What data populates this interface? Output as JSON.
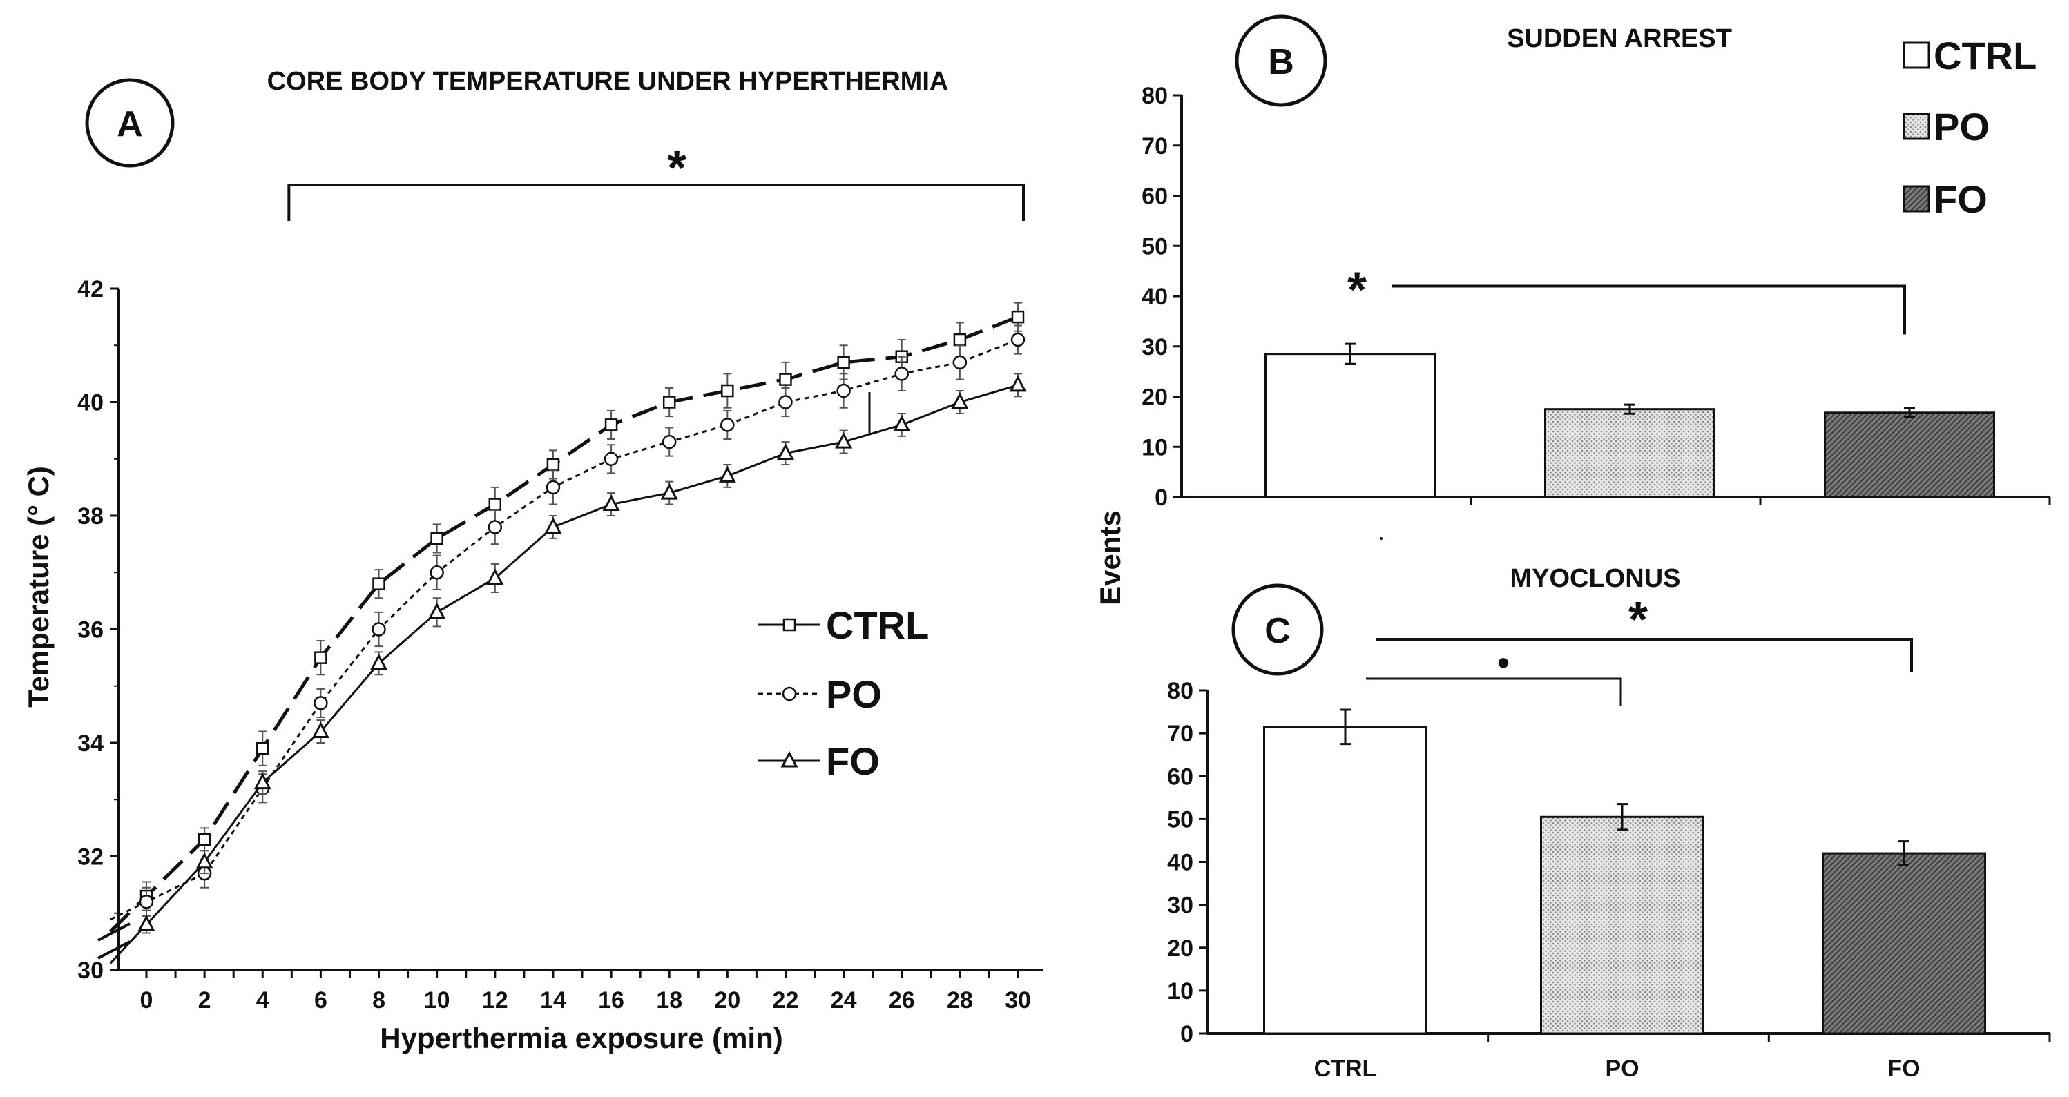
{
  "chart_data": [
    {
      "panel": "A",
      "type": "line",
      "title": "CORE BODY TEMPERATURE UNDER HYPERTHERMIA",
      "xlabel": "Hyperthermia exposure  (min)",
      "ylabel": "Temperature (° C)",
      "x": [
        0,
        2,
        4,
        6,
        8,
        10,
        12,
        14,
        16,
        18,
        20,
        22,
        24,
        26,
        28,
        30
      ],
      "x_tick_labels": [
        "0",
        "2",
        "4",
        "6",
        "8",
        "10",
        "12",
        "14",
        "16",
        "18",
        "20",
        "22",
        "24",
        "26",
        "28",
        "30"
      ],
      "ylim": [
        30,
        42
      ],
      "y_tick_labels": [
        "30",
        "32",
        "34",
        "36",
        "38",
        "40",
        "42"
      ],
      "series": [
        {
          "name": "CTRL",
          "marker": "square",
          "line": "long-dash",
          "values": [
            31.3,
            32.3,
            33.9,
            35.5,
            36.8,
            37.6,
            38.2,
            38.9,
            39.6,
            40.0,
            40.2,
            40.4,
            40.7,
            40.8,
            41.1,
            41.5
          ],
          "errors": [
            0.25,
            0.2,
            0.3,
            0.3,
            0.25,
            0.25,
            0.3,
            0.25,
            0.25,
            0.25,
            0.3,
            0.3,
            0.3,
            0.3,
            0.3,
            0.25
          ]
        },
        {
          "name": "PO",
          "marker": "circle",
          "line": "dotted",
          "values": [
            31.2,
            31.7,
            33.2,
            34.7,
            36.0,
            37.0,
            37.8,
            38.5,
            39.0,
            39.3,
            39.6,
            40.0,
            40.2,
            40.5,
            40.7,
            41.1
          ],
          "errors": [
            0.25,
            0.25,
            0.25,
            0.25,
            0.3,
            0.3,
            0.3,
            0.3,
            0.25,
            0.25,
            0.25,
            0.25,
            0.3,
            0.3,
            0.3,
            0.25
          ]
        },
        {
          "name": "FO",
          "marker": "triangle",
          "line": "solid",
          "values": [
            30.8,
            31.9,
            33.3,
            34.2,
            35.4,
            36.3,
            36.9,
            37.8,
            38.2,
            38.4,
            38.7,
            39.1,
            39.3,
            39.6,
            40.0,
            40.3
          ],
          "errors": [
            0.15,
            0.2,
            0.2,
            0.2,
            0.2,
            0.25,
            0.25,
            0.2,
            0.2,
            0.2,
            0.2,
            0.2,
            0.2,
            0.2,
            0.2,
            0.2
          ]
        }
      ],
      "legend": [
        "CTRL",
        "PO",
        "FO"
      ],
      "annotations": [
        {
          "text": "*",
          "from_x": 5,
          "to_x": 30
        }
      ]
    },
    {
      "panel": "B",
      "type": "bar",
      "title": "SUDDEN ARREST",
      "ylabel": "Events",
      "categories": [
        "CTRL",
        "PO",
        "FO"
      ],
      "values": [
        28.5,
        17.5,
        16.8
      ],
      "errors": [
        2.0,
        0.9,
        0.9
      ],
      "ylim": [
        0,
        80
      ],
      "y_tick_labels": [
        "0",
        "10",
        "20",
        "30",
        "40",
        "50",
        "60",
        "70",
        "80"
      ],
      "legend": [
        "CTRL",
        "PO",
        "FO"
      ],
      "annotations": [
        {
          "text": "*",
          "from": "CTRL",
          "to": "FO",
          "y": 42
        }
      ]
    },
    {
      "panel": "C",
      "type": "bar",
      "title": "MYOCLONUS",
      "ylabel": "Events",
      "categories": [
        "CTRL",
        "PO",
        "FO"
      ],
      "values": [
        71.5,
        50.5,
        42.0
      ],
      "errors": [
        4.0,
        3.0,
        2.8
      ],
      "ylim": [
        0,
        80
      ],
      "y_tick_labels": [
        "0",
        "10",
        "20",
        "30",
        "40",
        "50",
        "60",
        "70",
        "80"
      ],
      "annotations": [
        {
          "text": "*",
          "from": "CTRL",
          "to": "FO",
          "y": 89
        },
        {
          "text": "●",
          "from": "CTRL",
          "to": "PO",
          "y": 80
        }
      ]
    }
  ],
  "labels": {
    "a": "A",
    "b": "B",
    "c": "C",
    "events": "Events"
  },
  "colors": {
    "ctrl": "#ffffff",
    "po": "#d8d8d8",
    "fo": "#6e6e6e",
    "ink": "#111111"
  }
}
